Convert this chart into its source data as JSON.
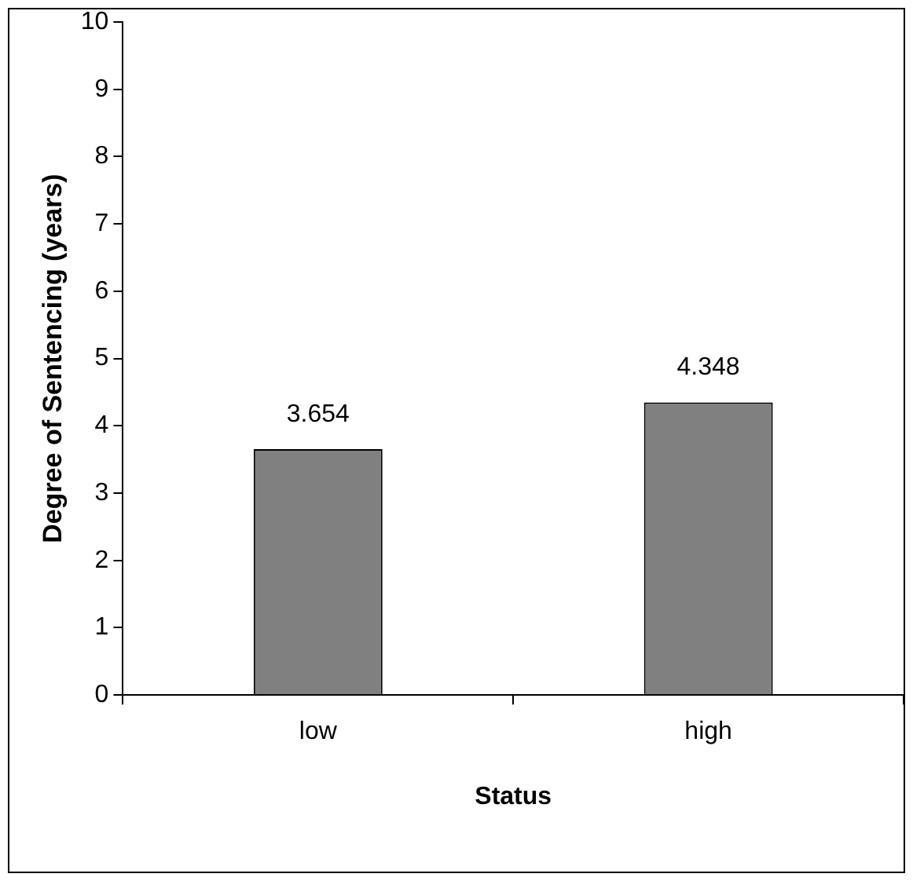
{
  "chart_data": {
    "type": "bar",
    "xlabel": "Status",
    "ylabel": "Degree of Sentencing (years)",
    "categories": [
      "low",
      "high"
    ],
    "values": [
      3.654,
      4.348
    ],
    "color": "#808080",
    "ylim": [
      0,
      10
    ],
    "yticks": [
      0,
      1,
      2,
      3,
      4,
      5,
      6,
      7,
      8,
      9,
      10
    ],
    "grid": false,
    "legend": false,
    "data_labels": true
  }
}
